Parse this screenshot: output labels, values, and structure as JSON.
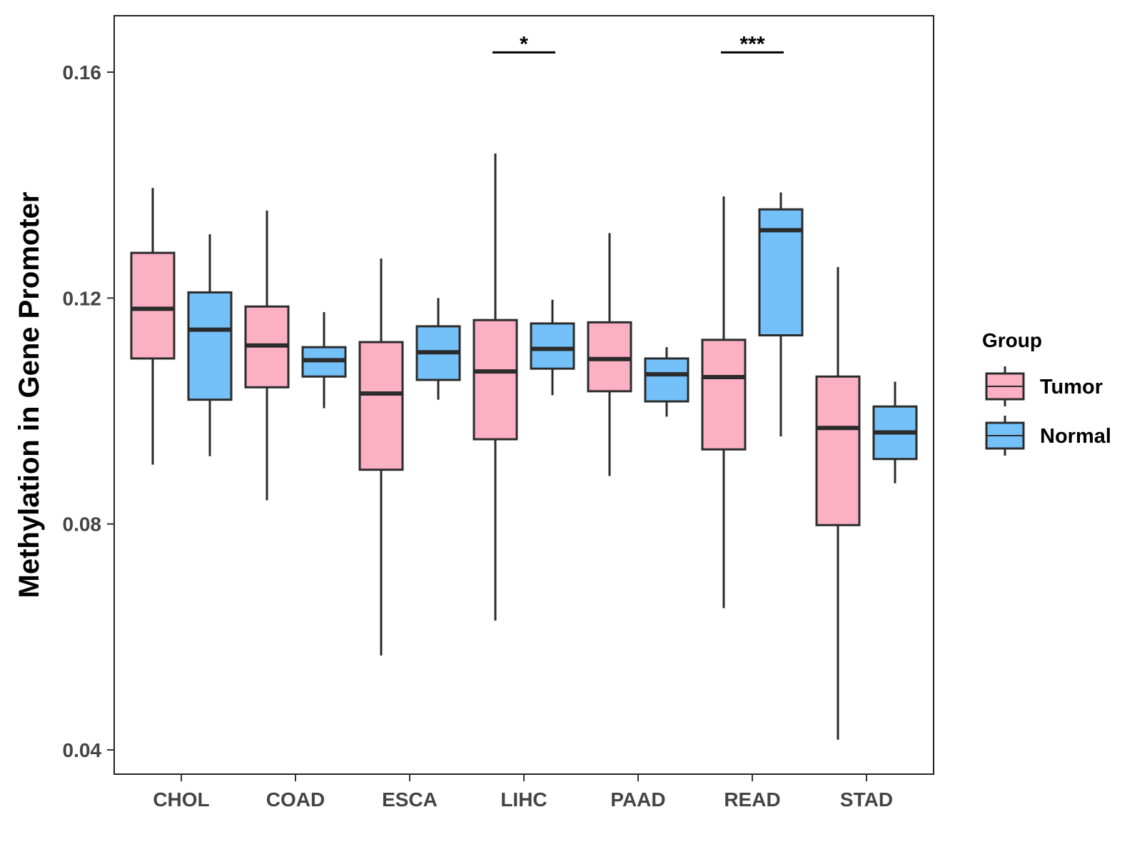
{
  "chart_data": {
    "type": "boxplot",
    "title": "",
    "xlabel": "",
    "ylabel": "Methylation in Gene Promoter",
    "ylim": [
      0.036,
      0.17
    ],
    "yticks": [
      0.04,
      0.08,
      0.12,
      0.16
    ],
    "ytick_labels": [
      "0.04",
      "0.08",
      "0.12",
      "0.16"
    ],
    "categories": [
      "CHOL",
      "COAD",
      "ESCA",
      "LIHC",
      "PAAD",
      "READ",
      "STAD"
    ],
    "legend": {
      "title": "Group",
      "position": "right",
      "entries": [
        "Tumor",
        "Normal"
      ]
    },
    "colors": {
      "Tumor": "#fbb0c3",
      "Normal": "#74c0f8",
      "outline": "#2b2b2b"
    },
    "series": [
      {
        "name": "Tumor",
        "boxes": [
          {
            "category": "CHOL",
            "min": 0.0905,
            "q1": 0.1093,
            "median": 0.1181,
            "q3": 0.128,
            "max": 0.1395
          },
          {
            "category": "COAD",
            "min": 0.0842,
            "q1": 0.1042,
            "median": 0.1116,
            "q3": 0.1185,
            "max": 0.1355
          },
          {
            "category": "ESCA",
            "min": 0.0567,
            "q1": 0.0896,
            "median": 0.1031,
            "q3": 0.1122,
            "max": 0.127
          },
          {
            "category": "LIHC",
            "min": 0.0629,
            "q1": 0.095,
            "median": 0.107,
            "q3": 0.1161,
            "max": 0.1456
          },
          {
            "category": "PAAD",
            "min": 0.0885,
            "q1": 0.1035,
            "median": 0.1092,
            "q3": 0.1157,
            "max": 0.1315
          },
          {
            "category": "READ",
            "min": 0.0651,
            "q1": 0.0932,
            "median": 0.106,
            "q3": 0.1126,
            "max": 0.138
          },
          {
            "category": "STAD",
            "min": 0.0418,
            "q1": 0.0798,
            "median": 0.097,
            "q3": 0.1061,
            "max": 0.1255
          }
        ]
      },
      {
        "name": "Normal",
        "boxes": [
          {
            "category": "CHOL",
            "min": 0.092,
            "q1": 0.102,
            "median": 0.1144,
            "q3": 0.121,
            "max": 0.1313
          },
          {
            "category": "COAD",
            "min": 0.1005,
            "q1": 0.1061,
            "median": 0.109,
            "q3": 0.1113,
            "max": 0.1175
          },
          {
            "category": "ESCA",
            "min": 0.102,
            "q1": 0.1055,
            "median": 0.1104,
            "q3": 0.115,
            "max": 0.12
          },
          {
            "category": "LIHC",
            "min": 0.1028,
            "q1": 0.1075,
            "median": 0.111,
            "q3": 0.1155,
            "max": 0.1197
          },
          {
            "category": "PAAD",
            "min": 0.099,
            "q1": 0.1017,
            "median": 0.1065,
            "q3": 0.1093,
            "max": 0.1113
          },
          {
            "category": "READ",
            "min": 0.0955,
            "q1": 0.1134,
            "median": 0.132,
            "q3": 0.1357,
            "max": 0.1387
          },
          {
            "category": "STAD",
            "min": 0.0872,
            "q1": 0.0915,
            "median": 0.0962,
            "q3": 0.1008,
            "max": 0.1052
          }
        ]
      }
    ],
    "annotations": [
      {
        "category": "LIHC",
        "label": "*",
        "y": 0.1635
      },
      {
        "category": "READ",
        "label": "***",
        "y": 0.1635
      }
    ]
  }
}
